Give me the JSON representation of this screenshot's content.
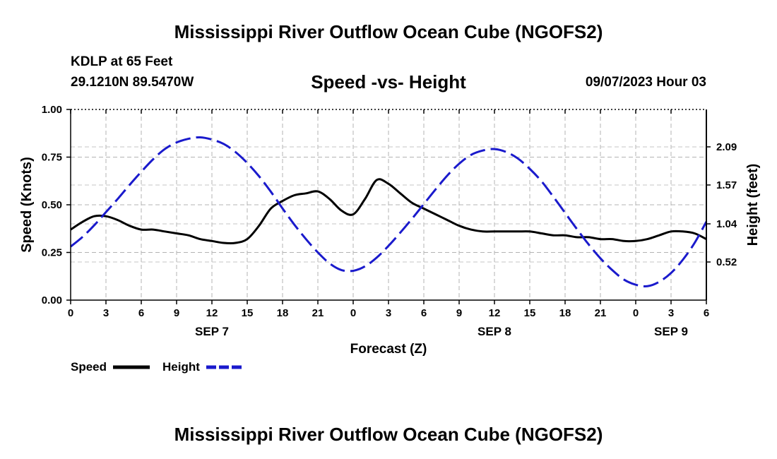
{
  "chart_data": {
    "type": "line",
    "title": "Mississippi River Outflow Ocean Cube (NGOFS2)",
    "footer_title": "Mississippi River Outflow Ocean Cube (NGOFS2)",
    "subtitle": "Speed -vs- Height",
    "station": "KDLP at 65 Feet",
    "coordinates": "29.1210N  89.5470W",
    "timestamp": "09/07/2023 Hour 03",
    "xlabel": "Forecast (Z)",
    "ylabel_left": "Speed (Knots)",
    "ylabel_right": "Height (feet)",
    "x_range": [
      0,
      54
    ],
    "x_ticks": [
      0,
      3,
      6,
      9,
      12,
      15,
      18,
      21,
      24,
      27,
      30,
      33,
      36,
      39,
      42,
      45,
      48,
      51,
      54
    ],
    "x_tick_labels": [
      "0",
      "3",
      "6",
      "9",
      "12",
      "15",
      "18",
      "21",
      "0",
      "3",
      "6",
      "9",
      "12",
      "15",
      "18",
      "21",
      "0",
      "3",
      "6"
    ],
    "date_labels": [
      {
        "x": 12,
        "label": "SEP 7"
      },
      {
        "x": 36,
        "label": "SEP 8"
      },
      {
        "x": 51,
        "label": "SEP 9"
      }
    ],
    "ylim_left": [
      0,
      1.0
    ],
    "y_ticks_left": [
      "0.00",
      "0.25",
      "0.50",
      "0.75",
      "1.00"
    ],
    "y_tick_values_left": [
      0,
      0.25,
      0.5,
      0.75,
      1.0
    ],
    "ylim_right": [
      0.0,
      2.6
    ],
    "y_ticks_right": [
      "0.52",
      "1.04",
      "1.57",
      "2.09"
    ],
    "y_tick_values_right": [
      0.52,
      1.04,
      1.57,
      2.09
    ],
    "grid": true,
    "series": [
      {
        "name": "Speed",
        "axis": "left",
        "color": "#000000",
        "style": "solid",
        "x": [
          0,
          1,
          2,
          3,
          4,
          5,
          6,
          7,
          8,
          9,
          10,
          11,
          12,
          13,
          14,
          15,
          16,
          17,
          18,
          19,
          20,
          21,
          22,
          23,
          24,
          25,
          26,
          27,
          28,
          29,
          30,
          31,
          32,
          33,
          34,
          35,
          36,
          37,
          38,
          39,
          40,
          41,
          42,
          43,
          44,
          45,
          46,
          47,
          48,
          49,
          50,
          51,
          52,
          53,
          54
        ],
        "values": [
          0.37,
          0.41,
          0.44,
          0.44,
          0.42,
          0.39,
          0.37,
          0.37,
          0.36,
          0.35,
          0.34,
          0.32,
          0.31,
          0.3,
          0.3,
          0.32,
          0.39,
          0.48,
          0.52,
          0.55,
          0.56,
          0.57,
          0.53,
          0.47,
          0.45,
          0.53,
          0.63,
          0.61,
          0.56,
          0.51,
          0.48,
          0.45,
          0.42,
          0.39,
          0.37,
          0.36,
          0.36,
          0.36,
          0.36,
          0.36,
          0.35,
          0.34,
          0.34,
          0.33,
          0.33,
          0.32,
          0.32,
          0.31,
          0.31,
          0.32,
          0.34,
          0.36,
          0.36,
          0.35,
          0.32
        ]
      },
      {
        "name": "Height",
        "axis": "right",
        "color": "#1a1acc",
        "style": "dashed",
        "x": [
          0,
          1,
          2,
          3,
          4,
          5,
          6,
          7,
          8,
          9,
          10,
          11,
          12,
          13,
          14,
          15,
          16,
          17,
          18,
          19,
          20,
          21,
          22,
          23,
          24,
          25,
          26,
          27,
          28,
          29,
          30,
          31,
          32,
          33,
          34,
          35,
          36,
          37,
          38,
          39,
          40,
          41,
          42,
          43,
          44,
          45,
          46,
          47,
          48,
          49,
          50,
          51,
          52,
          53,
          54
        ],
        "values": [
          0.73,
          0.86,
          1.02,
          1.2,
          1.38,
          1.57,
          1.75,
          1.92,
          2.06,
          2.15,
          2.2,
          2.22,
          2.19,
          2.13,
          2.02,
          1.87,
          1.69,
          1.48,
          1.25,
          1.03,
          0.83,
          0.65,
          0.5,
          0.41,
          0.4,
          0.46,
          0.58,
          0.74,
          0.92,
          1.11,
          1.31,
          1.51,
          1.7,
          1.86,
          1.98,
          2.04,
          2.06,
          2.02,
          1.93,
          1.79,
          1.62,
          1.41,
          1.19,
          0.97,
          0.76,
          0.57,
          0.41,
          0.28,
          0.21,
          0.19,
          0.25,
          0.37,
          0.55,
          0.78,
          1.07
        ]
      }
    ],
    "legend": [
      {
        "label": "Speed",
        "color": "#000000",
        "style": "solid"
      },
      {
        "label": "Height",
        "color": "#1a1acc",
        "style": "dashed"
      }
    ]
  }
}
